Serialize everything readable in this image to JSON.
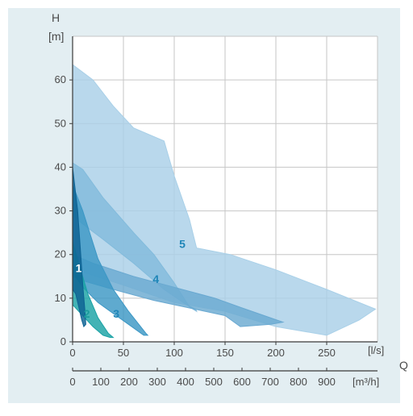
{
  "chart_data": {
    "type": "area",
    "title": "",
    "y_axis": {
      "label": "H",
      "unit": "[m]",
      "range": [
        0,
        70
      ],
      "ticks": [
        0,
        10,
        20,
        30,
        40,
        50,
        60
      ]
    },
    "x_axis": {
      "label": "Q",
      "unit": "[l/s]",
      "range": [
        0,
        300
      ],
      "ticks": [
        0,
        50,
        100,
        150,
        200,
        250
      ]
    },
    "secondary_x_axis": {
      "unit": "[m³/h]",
      "range": [
        0,
        1080
      ],
      "ticks": [
        0,
        100,
        200,
        300,
        400,
        500,
        600,
        700,
        800,
        900
      ]
    },
    "grid": true,
    "regions": [
      {
        "name": "5",
        "color": "#a9d0e8",
        "polygon": [
          [
            0,
            63.5
          ],
          [
            20,
            60
          ],
          [
            40,
            54
          ],
          [
            60,
            49
          ],
          [
            90,
            46
          ],
          [
            100,
            38
          ],
          [
            115,
            28
          ],
          [
            122,
            21.5
          ],
          [
            155,
            20
          ],
          [
            200,
            16.5
          ],
          [
            250,
            12
          ],
          [
            298,
            7.5
          ],
          [
            282,
            5
          ],
          [
            250,
            1.5
          ],
          [
            200,
            3.5
          ],
          [
            150,
            7
          ],
          [
            100,
            9
          ],
          [
            50,
            13
          ],
          [
            10,
            16
          ],
          [
            0,
            17
          ]
        ]
      },
      {
        "name": "4",
        "color": "#82bbdc",
        "polygon": [
          [
            0,
            41
          ],
          [
            10,
            39.5
          ],
          [
            30,
            33
          ],
          [
            60,
            25
          ],
          [
            80,
            20
          ],
          [
            100,
            13.5
          ],
          [
            115,
            8
          ],
          [
            122,
            7
          ],
          [
            121,
            7.5
          ],
          [
            112,
            8.5
          ],
          [
            90,
            12
          ],
          [
            60,
            18
          ],
          [
            30,
            23.5
          ],
          [
            10,
            27
          ],
          [
            0,
            29
          ]
        ]
      },
      {
        "name": "4-lower",
        "color": "#6aa9d1",
        "polygon": [
          [
            0,
            20
          ],
          [
            20,
            18
          ],
          [
            60,
            15
          ],
          [
            100,
            12.5
          ],
          [
            140,
            10
          ],
          [
            170,
            7.5
          ],
          [
            207,
            4.5
          ],
          [
            195,
            4
          ],
          [
            165,
            3.5
          ],
          [
            150,
            6
          ],
          [
            120,
            7.5
          ],
          [
            80,
            9.5
          ],
          [
            40,
            12
          ],
          [
            10,
            14
          ],
          [
            0,
            15
          ]
        ]
      },
      {
        "name": "3",
        "color": "#3c97c5",
        "polygon": [
          [
            0,
            36
          ],
          [
            10,
            30
          ],
          [
            25,
            19
          ],
          [
            40,
            12
          ],
          [
            55,
            7
          ],
          [
            72,
            2
          ],
          [
            74,
            1.5
          ],
          [
            70,
            1.5
          ],
          [
            55,
            4
          ],
          [
            40,
            6.5
          ],
          [
            25,
            9
          ],
          [
            10,
            12.5
          ],
          [
            0,
            16
          ]
        ]
      },
      {
        "name": "2",
        "color": "#1aa2a5",
        "polygon": [
          [
            0,
            23
          ],
          [
            6,
            18
          ],
          [
            15,
            11
          ],
          [
            25,
            5.5
          ],
          [
            35,
            2
          ],
          [
            40,
            1
          ],
          [
            37,
            1
          ],
          [
            30,
            1.5
          ],
          [
            20,
            3.5
          ],
          [
            10,
            6
          ],
          [
            0,
            8.5
          ]
        ]
      },
      {
        "name": "1",
        "color": "#0d6293",
        "polygon": [
          [
            0,
            40
          ],
          [
            2,
            36
          ],
          [
            5,
            30
          ],
          [
            8,
            20
          ],
          [
            10,
            13
          ],
          [
            12,
            7.5
          ],
          [
            13,
            4
          ],
          [
            11,
            3.5
          ],
          [
            9,
            5
          ],
          [
            6,
            8
          ],
          [
            3,
            11
          ],
          [
            0,
            12
          ]
        ]
      }
    ],
    "region_labels": [
      {
        "text": "1",
        "x": 6,
        "y": 16,
        "color": "#ffffff"
      },
      {
        "text": "2",
        "x": 14,
        "y": 5.5,
        "color": "#1a9a9c"
      },
      {
        "text": "3",
        "x": 43,
        "y": 5.5,
        "color": "#1f86b8"
      },
      {
        "text": "4",
        "x": 82,
        "y": 13.5,
        "color": "#1f86b8"
      },
      {
        "text": "5",
        "x": 108,
        "y": 21.5,
        "color": "#1f86b8"
      }
    ]
  },
  "colors": {
    "panel": "#e3eef2",
    "plot_bg": "#ffffff",
    "grid": "#c6c6c6",
    "axis": "#3a3a3a",
    "text": "#4a4a4a"
  }
}
